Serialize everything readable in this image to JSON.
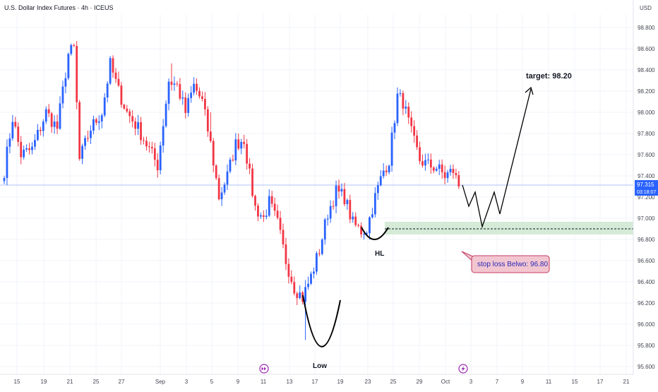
{
  "header": {
    "title": "U.S. Dollar Index Futures · 4h · ICEUS"
  },
  "currency_label": "USD",
  "last_price": {
    "value": "97.315",
    "countdown": "03:18:07"
  },
  "colors": {
    "up": "#2962ff",
    "down": "#f23645",
    "grid": "#f0f3fa",
    "text": "#131722",
    "axis_text": "#434651",
    "zone": "#d5ebd8",
    "stop_bg": "#f2c6d0",
    "stop_border": "#c43c64",
    "stop_text": "#2a2ab8",
    "price_line": "#b2c0ff"
  },
  "annotations": {
    "target_label": "target: 98.20",
    "low_label": "Low",
    "hl_label": "HL",
    "stop_label": "stop loss Belwo: 96.80",
    "event_icon_1": "fast-forward-icon",
    "event_icon_2": "lightning-icon"
  },
  "chart_data": {
    "type": "candlestick",
    "title": "U.S. Dollar Index Futures · 4h · ICEUS",
    "y_axis": {
      "ticks": [
        "98.800",
        "98.600",
        "98.400",
        "98.200",
        "98.000",
        "97.800",
        "97.600",
        "97.400",
        "97.200",
        "97.000",
        "96.800",
        "96.600",
        "96.400",
        "96.200",
        "96.000",
        "95.800",
        "95.600"
      ],
      "range": [
        95.5,
        98.95
      ]
    },
    "x_axis": {
      "ticks": [
        "15",
        "19",
        "21",
        "25",
        "27",
        "Sep",
        "3",
        "5",
        "9",
        "11",
        "13",
        "17",
        "19",
        "23",
        "25",
        "29",
        "Oct",
        "3",
        "7",
        "9",
        "11",
        "15",
        "17",
        "21"
      ]
    },
    "key_levels": {
      "current_price": 97.315,
      "target": 98.2,
      "stop_loss": 96.8,
      "swing_low": 95.85,
      "higher_low": 96.85
    },
    "anchors": [
      {
        "i": 0,
        "p": 97.45
      },
      {
        "i": 3,
        "p": 97.95
      },
      {
        "i": 6,
        "p": 97.6
      },
      {
        "i": 10,
        "p": 97.65
      },
      {
        "i": 15,
        "p": 98.0
      },
      {
        "i": 19,
        "p": 97.85
      },
      {
        "i": 23,
        "p": 98.55
      },
      {
        "i": 25,
        "p": 98.6
      },
      {
        "i": 27,
        "p": 97.55
      },
      {
        "i": 31,
        "p": 97.85
      },
      {
        "i": 35,
        "p": 98.0
      },
      {
        "i": 38,
        "p": 98.45
      },
      {
        "i": 41,
        "p": 98.2
      },
      {
        "i": 44,
        "p": 98.0
      },
      {
        "i": 48,
        "p": 97.85
      },
      {
        "i": 52,
        "p": 97.65
      },
      {
        "i": 55,
        "p": 97.5
      },
      {
        "i": 59,
        "p": 98.3
      },
      {
        "i": 62,
        "p": 98.25
      },
      {
        "i": 65,
        "p": 98.0
      },
      {
        "i": 68,
        "p": 98.25
      },
      {
        "i": 71,
        "p": 98.1
      },
      {
        "i": 74,
        "p": 97.7
      },
      {
        "i": 77,
        "p": 97.2
      },
      {
        "i": 80,
        "p": 97.4
      },
      {
        "i": 83,
        "p": 97.7
      },
      {
        "i": 86,
        "p": 97.75
      },
      {
        "i": 88,
        "p": 97.4
      },
      {
        "i": 90,
        "p": 97.1
      },
      {
        "i": 93,
        "p": 97.0
      },
      {
        "i": 95,
        "p": 97.15
      },
      {
        "i": 98,
        "p": 96.95
      },
      {
        "i": 101,
        "p": 96.6
      },
      {
        "i": 104,
        "p": 96.35
      },
      {
        "i": 107,
        "p": 96.25
      },
      {
        "i": 110,
        "p": 96.45
      },
      {
        "i": 113,
        "p": 96.7
      },
      {
        "i": 116,
        "p": 97.05
      },
      {
        "i": 119,
        "p": 97.25
      },
      {
        "i": 122,
        "p": 97.2
      },
      {
        "i": 125,
        "p": 96.95
      },
      {
        "i": 128,
        "p": 96.88
      },
      {
        "i": 130,
        "p": 96.9
      },
      {
        "i": 133,
        "p": 97.2
      },
      {
        "i": 136,
        "p": 97.45
      },
      {
        "i": 138,
        "p": 97.55
      },
      {
        "i": 141,
        "p": 98.15
      },
      {
        "i": 143,
        "p": 98.1
      },
      {
        "i": 146,
        "p": 97.8
      },
      {
        "i": 149,
        "p": 97.55
      },
      {
        "i": 152,
        "p": 97.5
      },
      {
        "i": 155,
        "p": 97.48
      },
      {
        "i": 158,
        "p": 97.4
      },
      {
        "i": 161,
        "p": 97.45
      },
      {
        "i": 163,
        "p": 97.3
      }
    ]
  }
}
